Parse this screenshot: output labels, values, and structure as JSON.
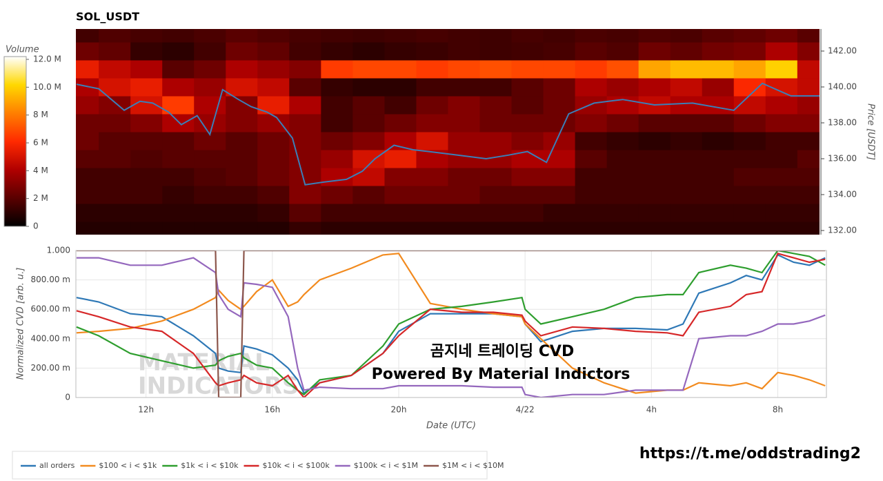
{
  "chart_data": [
    {
      "type": "heatmap",
      "title": "SOL_USDT",
      "x": [
        10,
        11,
        12,
        13,
        14,
        15,
        16,
        17,
        18,
        19,
        20,
        21,
        22,
        23,
        24,
        25,
        26,
        27,
        28,
        29,
        30,
        31,
        32,
        33
      ],
      "y": [
        132,
        133,
        134,
        135,
        136,
        137,
        138,
        139,
        140,
        141,
        142,
        143
      ],
      "z": [
        [
          0.8,
          0.8,
          0.8,
          0.8,
          0.8,
          0.8,
          0.8,
          1.2,
          1,
          1,
          1,
          1,
          1,
          1,
          1,
          1,
          1,
          1,
          1,
          1,
          1,
          1,
          1,
          1
        ],
        [
          1,
          1,
          1,
          1,
          1,
          1,
          1.2,
          2,
          1.5,
          1.5,
          1.5,
          1.5,
          1.5,
          1.5,
          1.5,
          1.2,
          1.2,
          1.2,
          1.2,
          1.2,
          1.2,
          1.2,
          1.2,
          1.2
        ],
        [
          1.5,
          1.5,
          1.5,
          1.2,
          1.5,
          1.5,
          1.8,
          3,
          2.5,
          2,
          2.5,
          2.5,
          2.5,
          2,
          2,
          2,
          1.5,
          1.5,
          1.5,
          1.5,
          1.5,
          1.5,
          1.5,
          1.5
        ],
        [
          1.5,
          1.5,
          1.5,
          1.5,
          1.8,
          2,
          2.5,
          3,
          4,
          4.5,
          3,
          3,
          2.5,
          2.5,
          3,
          3,
          1.5,
          1.5,
          1.5,
          1.5,
          1.5,
          1.8,
          1.8,
          1.8
        ],
        [
          2,
          2,
          1.8,
          2,
          2,
          2,
          2.5,
          3,
          3.5,
          5,
          5.5,
          4,
          3.5,
          3.5,
          4,
          4,
          2,
          1.5,
          1.5,
          1.5,
          1.5,
          1.5,
          1.5,
          2
        ],
        [
          2.5,
          2,
          2,
          2,
          2.5,
          2,
          2.5,
          3,
          2.5,
          3,
          4,
          5,
          3.5,
          3.5,
          3,
          3.5,
          1.5,
          1.2,
          1,
          1.2,
          1,
          1.2,
          1.5,
          1.5
        ],
        [
          2.5,
          2.5,
          3,
          4,
          3.5,
          3,
          3.5,
          3,
          1.5,
          2,
          2.5,
          3,
          3,
          2.5,
          2.5,
          2.5,
          3,
          2.5,
          2,
          2,
          2,
          2.5,
          3,
          3
        ],
        [
          3.5,
          3,
          5,
          6.5,
          4,
          3,
          5.5,
          4,
          1.5,
          2,
          1.5,
          2.5,
          3,
          2.5,
          2,
          2.5,
          3.5,
          4,
          4.5,
          4,
          4,
          4.5,
          4,
          3.5
        ],
        [
          4,
          5,
          5.5,
          4,
          3.5,
          5,
          4.5,
          2,
          1.2,
          1,
          1,
          1.5,
          1.5,
          1.5,
          2,
          2.5,
          4,
          3.5,
          4,
          4.5,
          3.5,
          6,
          5,
          4.5
        ],
        [
          5.5,
          4.5,
          4,
          2,
          2.5,
          4,
          3.5,
          3,
          6.5,
          6.8,
          6.8,
          6.5,
          6.8,
          7,
          6.8,
          6.8,
          6.5,
          7,
          9,
          9.5,
          9.5,
          9,
          10,
          4.5
        ],
        [
          2.5,
          2.2,
          1.2,
          1,
          1.5,
          2.5,
          2.2,
          1.5,
          1.2,
          1,
          1.2,
          1.3,
          1.5,
          1.4,
          1.5,
          1.6,
          2,
          1.8,
          2.5,
          2.2,
          2.6,
          2.8,
          4,
          3
        ],
        [
          1.5,
          1.8,
          1.6,
          1.5,
          1.7,
          2,
          1.8,
          1.6,
          1.5,
          1.4,
          1.5,
          1.6,
          1.5,
          1.4,
          1.6,
          1.5,
          1.7,
          1.6,
          1.8,
          1.7,
          2,
          2.2,
          2.5,
          2
        ]
      ],
      "xlim": [
        9.78,
        33.2
      ],
      "ylabel": "Price [USDT]",
      "ylim": [
        131.77,
        143.23
      ],
      "yticks": [
        {
          "value": 132,
          "label": "132.00"
        },
        {
          "value": 134,
          "label": "134.00"
        },
        {
          "value": 136,
          "label": "136.00"
        },
        {
          "value": 138,
          "label": "138.00"
        },
        {
          "value": 140,
          "label": "140.00"
        },
        {
          "value": 142,
          "label": "142.00"
        }
      ],
      "colorscale": [
        "#000000",
        "#5a0000",
        "#b00000",
        "#ff2a00",
        "#ff7f00",
        "#ffd800",
        "#ffffff"
      ],
      "colorbar": {
        "label": "Volume",
        "lim": [
          0,
          12.2
        ],
        "ticks": [
          0,
          {
            "value": 2,
            "label": "2 M"
          },
          {
            "value": 4,
            "label": "4 M"
          },
          {
            "value": 6,
            "label": "6 M"
          },
          {
            "value": 8,
            "label": "8 M"
          },
          {
            "value": 10,
            "label": "10.0 M"
          },
          {
            "value": 12,
            "label": "12.0 M"
          }
        ]
      },
      "line": {
        "color": "#3b7fb8",
        "x": [
          9.8,
          10.5,
          11.3,
          11.8,
          12.2,
          12.7,
          13.1,
          13.6,
          14.0,
          14.4,
          14.9,
          15.3,
          15.8,
          16.1,
          16.6,
          17.0,
          17.6,
          18.3,
          18.8,
          19.2,
          19.8,
          20.4,
          20.9,
          21.8,
          22.7,
          23.4,
          24.0,
          24.6,
          25.3,
          26.1,
          27.0,
          28.0,
          29.2,
          30.5,
          31.4,
          32.3,
          33.2
        ],
        "values": [
          140.15,
          139.9,
          138.7,
          139.2,
          139.1,
          138.6,
          137.9,
          138.4,
          137.35,
          139.85,
          139.3,
          138.9,
          138.6,
          138.3,
          137.15,
          134.55,
          134.7,
          134.85,
          135.3,
          136.0,
          136.75,
          136.5,
          136.4,
          136.2,
          136.0,
          136.2,
          136.4,
          135.8,
          138.5,
          139.1,
          139.3,
          139.0,
          139.1,
          138.7,
          140.2,
          139.5,
          139.5
        ]
      }
    },
    {
      "type": "line",
      "xlabel": "Date (UTC)",
      "ylabel": "Normalized CVD [arb. u.]",
      "x": [
        9.8,
        10.5,
        11.5,
        12.5,
        13.5,
        14.2,
        14.3,
        14.6,
        15.0,
        15.1,
        15.5,
        16.0,
        16.5,
        16.8,
        17.0,
        17.5,
        18.5,
        19.5,
        20.0,
        21.0,
        22.0,
        23.0,
        23.9,
        24.0,
        24.5,
        25.5,
        26.5,
        27.5,
        28.5,
        29.0,
        29.5,
        30.5,
        31.0,
        31.5,
        32.0,
        32.5,
        33.0,
        33.5
      ],
      "xlim": [
        9.78,
        33.54
      ],
      "ylim": [
        0,
        1
      ],
      "xticks": [
        {
          "value": 12,
          "label": "12h"
        },
        {
          "value": 16,
          "label": "16h"
        },
        {
          "value": 20,
          "label": "20h"
        },
        {
          "value": 24,
          "label": "4/22"
        },
        {
          "value": 28,
          "label": "4h"
        },
        {
          "value": 32,
          "label": "8h"
        }
      ],
      "yticks": [
        0,
        {
          "value": 0.2,
          "label": "200.00 m"
        },
        {
          "value": 0.4,
          "label": "400.00 m"
        },
        {
          "value": 0.6,
          "label": "600.00 m"
        },
        {
          "value": 0.8,
          "label": "800.00 m"
        },
        {
          "value": 1,
          "label": "1.000"
        }
      ],
      "grid": true,
      "legend": "bottom",
      "series": [
        {
          "name": "all orders",
          "color": "#2e78b6",
          "values": [
            0.68,
            0.65,
            0.57,
            0.55,
            0.42,
            0.3,
            0.2,
            0.18,
            0.17,
            0.35,
            0.33,
            0.29,
            0.2,
            0.12,
            0.03,
            0.1,
            0.15,
            0.3,
            0.45,
            0.57,
            0.57,
            0.57,
            0.55,
            0.5,
            0.38,
            0.45,
            0.47,
            0.47,
            0.46,
            0.5,
            0.71,
            0.78,
            0.83,
            0.8,
            0.97,
            0.92,
            0.9,
            0.95
          ]
        },
        {
          "name": "$100 < i < $1k",
          "color": "#f28a1e",
          "values": [
            0.44,
            0.45,
            0.47,
            0.52,
            0.6,
            0.68,
            0.73,
            0.66,
            0.6,
            0.62,
            0.72,
            0.8,
            0.62,
            0.65,
            0.7,
            0.8,
            0.88,
            0.97,
            0.98,
            0.64,
            0.6,
            0.57,
            0.55,
            0.5,
            0.4,
            0.2,
            0.1,
            0.03,
            0.05,
            0.05,
            0.1,
            0.08,
            0.1,
            0.06,
            0.17,
            0.15,
            0.12,
            0.08
          ]
        },
        {
          "name": "$1k < i < $10k",
          "color": "#2e9e2e",
          "values": [
            0.48,
            0.42,
            0.3,
            0.25,
            0.2,
            0.22,
            0.25,
            0.28,
            0.3,
            0.27,
            0.22,
            0.2,
            0.1,
            0.05,
            0.02,
            0.12,
            0.15,
            0.35,
            0.5,
            0.6,
            0.62,
            0.65,
            0.68,
            0.6,
            0.5,
            0.55,
            0.6,
            0.68,
            0.7,
            0.7,
            0.85,
            0.9,
            0.88,
            0.85,
            1.0,
            0.98,
            0.96,
            0.9
          ]
        },
        {
          "name": "$10k < i < $100k",
          "color": "#d62728",
          "values": [
            0.59,
            0.55,
            0.48,
            0.45,
            0.3,
            0.1,
            0.08,
            0.1,
            0.12,
            0.15,
            0.1,
            0.08,
            0.15,
            0.05,
            0.0,
            0.1,
            0.15,
            0.3,
            0.42,
            0.6,
            0.58,
            0.58,
            0.56,
            0.52,
            0.42,
            0.48,
            0.47,
            0.45,
            0.44,
            0.42,
            0.58,
            0.62,
            0.7,
            0.72,
            0.98,
            0.95,
            0.92,
            0.94
          ]
        },
        {
          "name": "$100k < i < $1M",
          "color": "#9467bd",
          "values": [
            0.95,
            0.95,
            0.9,
            0.9,
            0.95,
            0.85,
            0.7,
            0.6,
            0.55,
            0.78,
            0.77,
            0.75,
            0.55,
            0.2,
            0.05,
            0.07,
            0.06,
            0.06,
            0.08,
            0.08,
            0.08,
            0.07,
            0.07,
            0.02,
            0.0,
            0.02,
            0.02,
            0.05,
            0.05,
            0.05,
            0.4,
            0.42,
            0.42,
            0.45,
            0.5,
            0.5,
            0.52,
            0.56
          ]
        },
        {
          "name": "$1M < i < $10M",
          "color": "#8c564b",
          "values": [
            1,
            1,
            1,
            1,
            1,
            1,
            0,
            0,
            0,
            1,
            1,
            1,
            1,
            1,
            1,
            1,
            1,
            1,
            1,
            1,
            1,
            1,
            1,
            1,
            1,
            1,
            1,
            1,
            1,
            1,
            1,
            1,
            1,
            1,
            1,
            1,
            1,
            1
          ]
        }
      ],
      "annotations": [
        "곰지네 트레이딩 CVD",
        "Powered By Material Indictors"
      ],
      "watermark": [
        "MATERIAL",
        "INDICATORS"
      ]
    }
  ],
  "footer": "https://t.me/oddstrading2"
}
